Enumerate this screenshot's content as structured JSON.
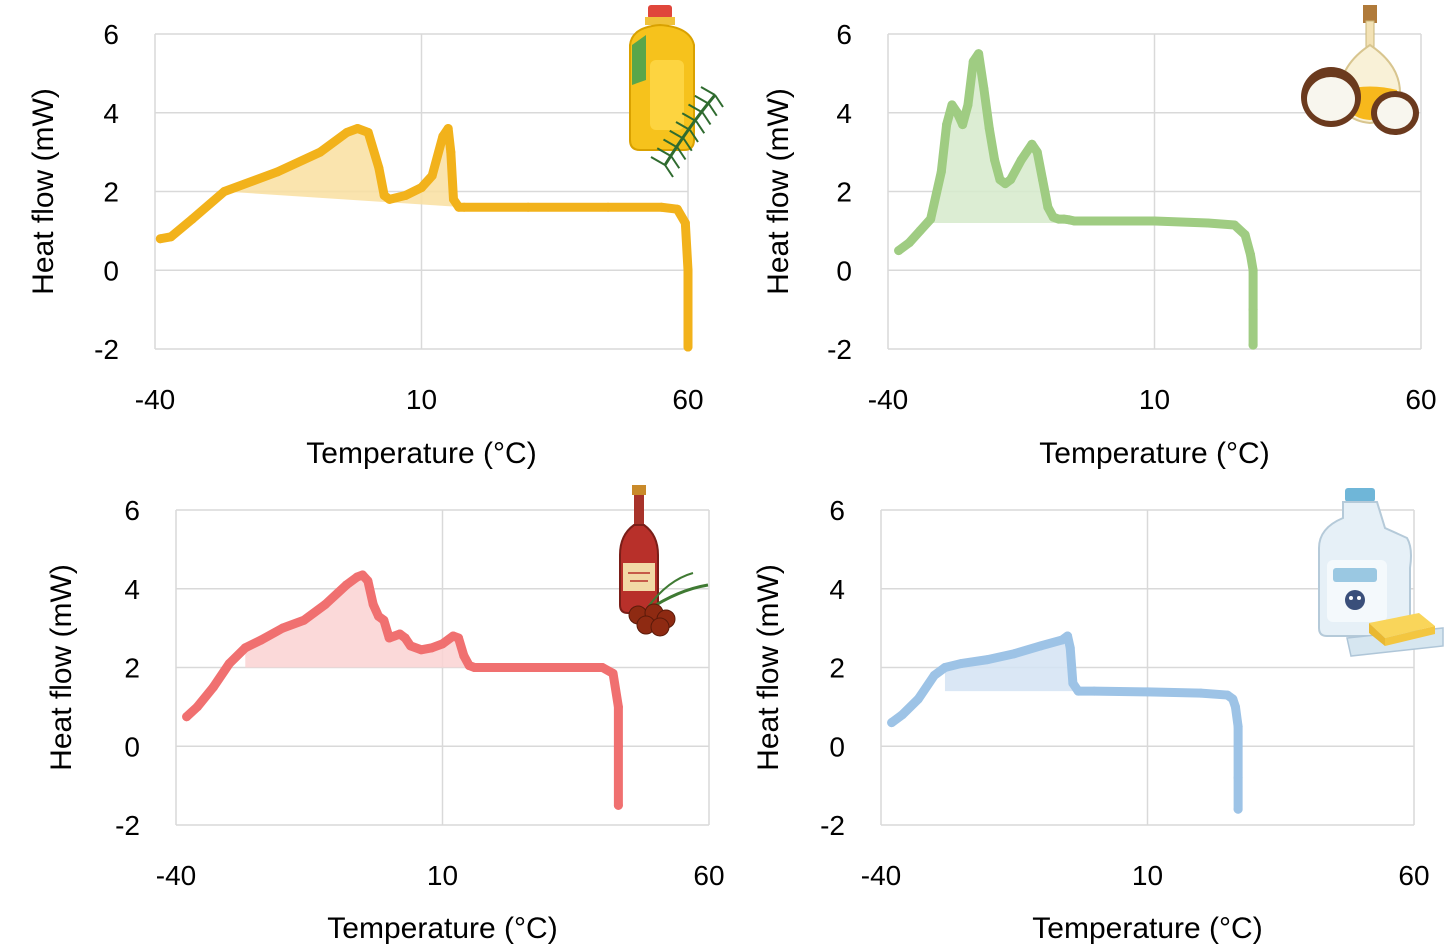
{
  "chart_data": [
    {
      "type": "line",
      "sample": "palm-oil",
      "icon": "palm-oil-bottle-icon",
      "color": "#F2B21B",
      "fill_color": "#F9DFA0",
      "xlabel": "Temperature (°C)",
      "ylabel": "Heat flow (mW)",
      "xlim": [
        -40,
        60
      ],
      "ylim": [
        -2,
        6
      ],
      "xticks": [
        "-40",
        "10",
        "60"
      ],
      "yticks": [
        "6",
        "4",
        "2",
        "0",
        "-2"
      ],
      "grid": true,
      "series": [
        {
          "x": [
            -39,
            -37,
            -33,
            -27,
            -17,
            -9,
            -4,
            -2,
            0,
            2,
            3,
            4,
            7,
            10,
            12,
            14,
            15,
            15.5,
            16,
            17,
            18,
            30,
            45,
            55,
            58,
            59.5,
            60,
            60,
            60
          ],
          "y": [
            0.8,
            0.85,
            1.3,
            2.0,
            2.5,
            3.0,
            3.5,
            3.6,
            3.5,
            2.6,
            1.9,
            1.8,
            1.9,
            2.1,
            2.4,
            3.4,
            3.6,
            3.0,
            1.8,
            1.6,
            1.6,
            1.6,
            1.6,
            1.6,
            1.55,
            1.2,
            0.0,
            -1.5,
            -1.95
          ],
          "baseline": {
            "x": [
              -27,
              18
            ],
            "y": [
              2.0,
              1.6
            ]
          }
        }
      ]
    },
    {
      "type": "line",
      "sample": "coconut-oil",
      "icon": "coconut-oil-icon",
      "color": "#9FCC82",
      "fill_color": "#D6EACB",
      "xlabel": "Temperature (°C)",
      "ylabel": "Heat flow (mW)",
      "xlim": [
        -40,
        60
      ],
      "ylim": [
        -2,
        6
      ],
      "xticks": [
        "-40",
        "10",
        "60"
      ],
      "yticks": [
        "6",
        "4",
        "2",
        "0",
        "-2"
      ],
      "grid": true,
      "series": [
        {
          "x": [
            -38,
            -36,
            -34,
            -32,
            -30,
            -29,
            -28,
            -27,
            -26,
            -25,
            -24,
            -23,
            -22,
            -21,
            -20,
            -19,
            -18,
            -17,
            -15,
            -13,
            -12,
            -11,
            -10,
            -9,
            -8,
            -7,
            -6,
            -5,
            0,
            10,
            20,
            25,
            27,
            28,
            28.5,
            28.5,
            28.5
          ],
          "y": [
            0.5,
            0.7,
            1.0,
            1.3,
            2.5,
            3.7,
            4.2,
            4.0,
            3.7,
            4.2,
            5.3,
            5.5,
            4.6,
            3.6,
            2.8,
            2.3,
            2.2,
            2.3,
            2.8,
            3.2,
            3.0,
            2.3,
            1.6,
            1.35,
            1.3,
            1.3,
            1.28,
            1.25,
            1.25,
            1.25,
            1.2,
            1.15,
            0.9,
            0.4,
            0.0,
            -1.0,
            -1.9
          ],
          "baseline": {
            "x": [
              -32,
              -7
            ],
            "y": [
              1.2,
              1.2
            ]
          }
        }
      ]
    },
    {
      "type": "line",
      "sample": "red-palm-oil",
      "icon": "red-palm-oil-bottle-icon",
      "color": "#F07070",
      "fill_color": "#FAD2D2",
      "xlabel": "Temperature (°C)",
      "ylabel": "Heat flow (mW)",
      "xlim": [
        -40,
        60
      ],
      "ylim": [
        -2,
        6
      ],
      "xticks": [
        "-40",
        "10",
        "60"
      ],
      "yticks": [
        "6",
        "4",
        "2",
        "0",
        "-2"
      ],
      "grid": true,
      "series": [
        {
          "x": [
            -38,
            -36,
            -33,
            -30,
            -27,
            -24,
            -20,
            -16,
            -12,
            -8,
            -6,
            -5,
            -4,
            -3,
            -2,
            -1,
            0,
            1,
            2,
            3,
            4,
            6,
            8,
            10,
            12,
            13,
            14,
            15,
            16,
            20,
            30,
            40,
            42,
            43,
            43,
            43
          ],
          "y": [
            0.75,
            1.0,
            1.5,
            2.1,
            2.5,
            2.7,
            3.0,
            3.2,
            3.6,
            4.1,
            4.3,
            4.35,
            4.2,
            3.6,
            3.3,
            3.2,
            2.75,
            2.8,
            2.85,
            2.75,
            2.55,
            2.45,
            2.5,
            2.6,
            2.8,
            2.75,
            2.3,
            2.05,
            2.0,
            2.0,
            2.0,
            2.0,
            1.85,
            1.0,
            0.0,
            -1.5
          ],
          "baseline": {
            "x": [
              -27,
              16
            ],
            "y": [
              2.0,
              2.0
            ]
          }
        }
      ]
    },
    {
      "type": "line",
      "sample": "milk-fat",
      "icon": "milk-butter-icon",
      "color": "#9DC3E6",
      "fill_color": "#D3E3F3",
      "xlabel": "Temperature (°C)",
      "ylabel": "Heat flow (mW)",
      "xlim": [
        -40,
        60
      ],
      "ylim": [
        -2,
        6
      ],
      "xticks": [
        "-40",
        "10",
        "60"
      ],
      "yticks": [
        "6",
        "4",
        "2",
        "0",
        "-2"
      ],
      "grid": true,
      "series": [
        {
          "x": [
            -38,
            -36,
            -33,
            -30,
            -28,
            -25,
            -20,
            -15,
            -10,
            -6,
            -5,
            -4.5,
            -4,
            -3,
            0,
            10,
            20,
            25,
            26,
            26.5,
            27,
            27,
            27,
            27
          ],
          "y": [
            0.6,
            0.8,
            1.2,
            1.8,
            2.0,
            2.1,
            2.2,
            2.35,
            2.55,
            2.7,
            2.8,
            2.5,
            1.6,
            1.4,
            1.4,
            1.38,
            1.35,
            1.3,
            1.2,
            1.0,
            0.5,
            0.0,
            -0.8,
            -1.6
          ],
          "baseline": {
            "x": [
              -28,
              -4
            ],
            "y": [
              1.4,
              1.4
            ]
          }
        }
      ]
    }
  ]
}
